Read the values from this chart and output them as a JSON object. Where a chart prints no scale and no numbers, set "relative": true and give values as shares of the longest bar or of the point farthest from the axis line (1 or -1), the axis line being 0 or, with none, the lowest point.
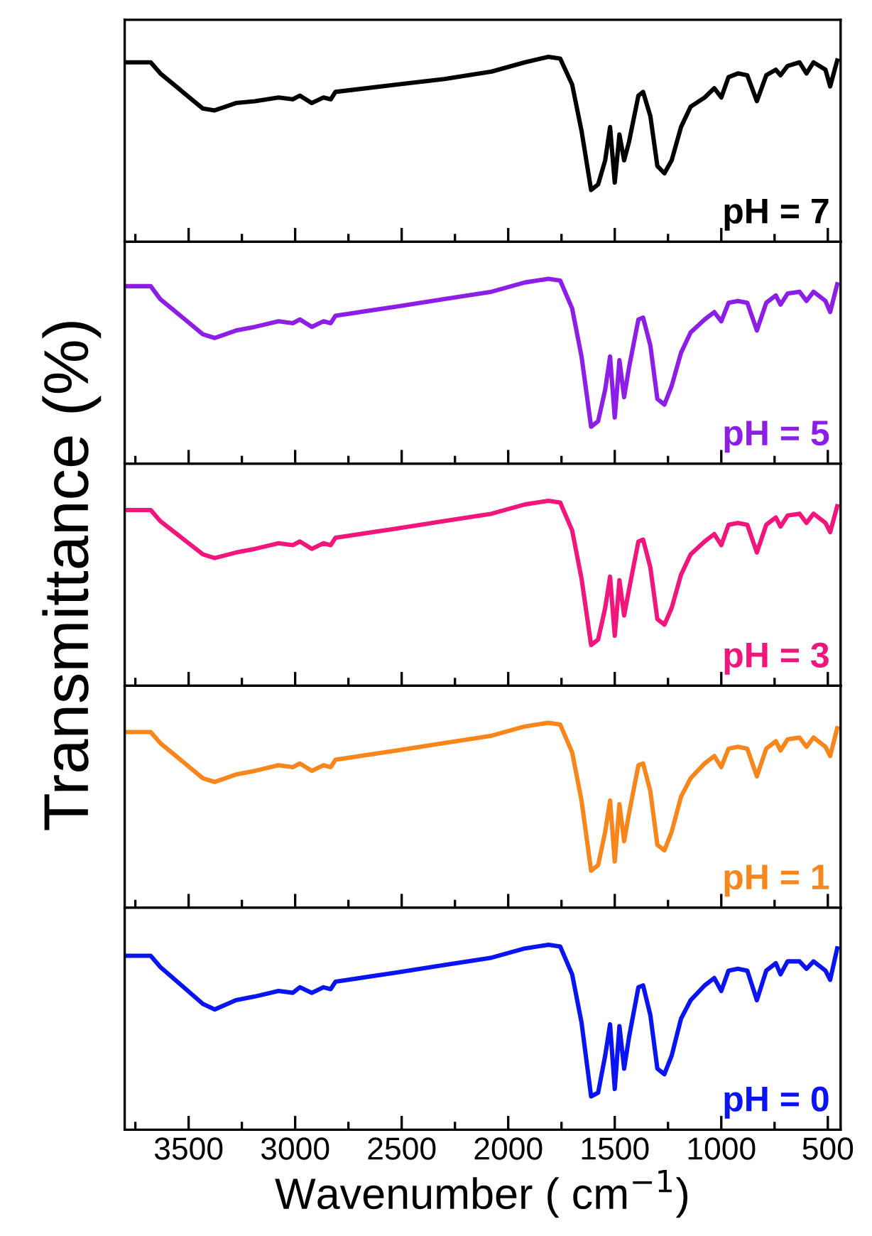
{
  "chart_data": [
    {
      "type": "line",
      "relative": true,
      "tick_labels": false,
      "xlim": [
        3800,
        440
      ],
      "xticks": [
        3500,
        3000,
        2500,
        2000,
        1500,
        1000,
        500,
        {
          "value": 3750,
          "label": null
        },
        {
          "value": 3250,
          "label": null
        },
        {
          "value": 2750,
          "label": null
        },
        {
          "value": 2250,
          "label": null
        },
        {
          "value": 1750,
          "label": null
        },
        {
          "value": 1250,
          "label": null
        },
        {
          "value": 750,
          "label": null
        }
      ],
      "x": [
        3800,
        3678,
        3633,
        3433,
        3378,
        3278,
        3189,
        3078,
        3011,
        2978,
        2922,
        2867,
        2833,
        2811,
        2522,
        2300,
        2078,
        1922,
        1811,
        1756,
        1700,
        1656,
        1611,
        1578,
        1545,
        1522,
        1500,
        1478,
        1456,
        1433,
        1389,
        1367,
        1333,
        1300,
        1267,
        1233,
        1189,
        1144,
        1078,
        1033,
        1000,
        966,
        922,
        878,
        833,
        789,
        744,
        722,
        689,
        633,
        600,
        567,
        511,
        489,
        456
      ],
      "series": [
        {
          "name": "pH = 7",
          "color": "#000000",
          "values": [
            0.97,
            0.97,
            0.91,
            0.72,
            0.71,
            0.75,
            0.76,
            0.78,
            0.77,
            0.79,
            0.75,
            0.78,
            0.77,
            0.81,
            0.85,
            0.88,
            0.92,
            0.97,
            1.0,
            0.99,
            0.85,
            0.6,
            0.28,
            0.31,
            0.44,
            0.62,
            0.32,
            0.58,
            0.44,
            0.54,
            0.79,
            0.81,
            0.68,
            0.41,
            0.37,
            0.44,
            0.62,
            0.73,
            0.78,
            0.83,
            0.78,
            0.89,
            0.91,
            0.9,
            0.76,
            0.9,
            0.93,
            0.9,
            0.95,
            0.97,
            0.91,
            0.97,
            0.93,
            0.84,
            0.98
          ]
        }
      ]
    },
    {
      "type": "line",
      "relative": true,
      "tick_labels": false,
      "xlim": [
        3800,
        440
      ],
      "xticks": [
        3500,
        3000,
        2500,
        2000,
        1500,
        1000,
        500,
        {
          "value": 3750,
          "label": null
        },
        {
          "value": 3250,
          "label": null
        },
        {
          "value": 2750,
          "label": null
        },
        {
          "value": 2250,
          "label": null
        },
        {
          "value": 1750,
          "label": null
        },
        {
          "value": 1250,
          "label": null
        },
        {
          "value": 750,
          "label": null
        }
      ],
      "x": [
        3800,
        3678,
        3633,
        3433,
        3378,
        3278,
        3189,
        3078,
        3011,
        2978,
        2922,
        2867,
        2833,
        2811,
        2522,
        2300,
        2078,
        1922,
        1811,
        1756,
        1700,
        1656,
        1611,
        1578,
        1545,
        1522,
        1500,
        1478,
        1456,
        1433,
        1389,
        1367,
        1333,
        1300,
        1267,
        1233,
        1189,
        1144,
        1078,
        1033,
        1000,
        966,
        922,
        878,
        833,
        789,
        744,
        722,
        689,
        633,
        600,
        567,
        511,
        489,
        456
      ],
      "series": [
        {
          "name": "pH = 5",
          "color": "#8c1ee6",
          "values": [
            0.96,
            0.96,
            0.89,
            0.7,
            0.68,
            0.72,
            0.74,
            0.77,
            0.76,
            0.78,
            0.74,
            0.77,
            0.76,
            0.8,
            0.85,
            0.89,
            0.93,
            0.98,
            1.0,
            0.99,
            0.84,
            0.58,
            0.2,
            0.23,
            0.4,
            0.58,
            0.25,
            0.56,
            0.36,
            0.52,
            0.78,
            0.79,
            0.64,
            0.35,
            0.32,
            0.42,
            0.6,
            0.71,
            0.78,
            0.82,
            0.77,
            0.87,
            0.88,
            0.87,
            0.72,
            0.87,
            0.91,
            0.86,
            0.92,
            0.93,
            0.88,
            0.93,
            0.88,
            0.82,
            0.97
          ]
        }
      ]
    },
    {
      "type": "line",
      "relative": true,
      "tick_labels": false,
      "ylabel": "Transmittance (%)",
      "xlim": [
        3800,
        440
      ],
      "xticks": [
        3500,
        3000,
        2500,
        2000,
        1500,
        1000,
        500,
        {
          "value": 3750,
          "label": null
        },
        {
          "value": 3250,
          "label": null
        },
        {
          "value": 2750,
          "label": null
        },
        {
          "value": 2250,
          "label": null
        },
        {
          "value": 1750,
          "label": null
        },
        {
          "value": 1250,
          "label": null
        },
        {
          "value": 750,
          "label": null
        }
      ],
      "x": [
        3800,
        3678,
        3633,
        3433,
        3378,
        3278,
        3189,
        3078,
        3011,
        2978,
        2922,
        2867,
        2833,
        2811,
        2522,
        2300,
        2078,
        1922,
        1811,
        1756,
        1700,
        1656,
        1611,
        1578,
        1545,
        1522,
        1500,
        1478,
        1456,
        1433,
        1389,
        1367,
        1333,
        1300,
        1267,
        1233,
        1189,
        1144,
        1078,
        1033,
        1000,
        966,
        922,
        878,
        833,
        789,
        744,
        722,
        689,
        633,
        600,
        567,
        511,
        489,
        456
      ],
      "series": [
        {
          "name": "pH = 3",
          "color": "#f0167c",
          "values": [
            0.95,
            0.95,
            0.89,
            0.71,
            0.69,
            0.72,
            0.74,
            0.77,
            0.76,
            0.78,
            0.74,
            0.77,
            0.76,
            0.8,
            0.85,
            0.89,
            0.93,
            0.98,
            1.0,
            0.99,
            0.84,
            0.58,
            0.22,
            0.25,
            0.42,
            0.59,
            0.27,
            0.57,
            0.38,
            0.52,
            0.78,
            0.79,
            0.64,
            0.36,
            0.33,
            0.42,
            0.6,
            0.71,
            0.78,
            0.82,
            0.76,
            0.87,
            0.88,
            0.87,
            0.72,
            0.87,
            0.91,
            0.86,
            0.92,
            0.93,
            0.88,
            0.93,
            0.88,
            0.83,
            0.97
          ]
        }
      ]
    },
    {
      "type": "line",
      "relative": true,
      "tick_labels": false,
      "xlim": [
        3800,
        440
      ],
      "xticks": [
        3500,
        3000,
        2500,
        2000,
        1500,
        1000,
        500,
        {
          "value": 3750,
          "label": null
        },
        {
          "value": 3250,
          "label": null
        },
        {
          "value": 2750,
          "label": null
        },
        {
          "value": 2250,
          "label": null
        },
        {
          "value": 1750,
          "label": null
        },
        {
          "value": 1250,
          "label": null
        },
        {
          "value": 750,
          "label": null
        }
      ],
      "x": [
        3800,
        3678,
        3633,
        3433,
        3378,
        3278,
        3189,
        3078,
        3011,
        2978,
        2922,
        2867,
        2833,
        2811,
        2522,
        2300,
        2078,
        1922,
        1811,
        1756,
        1700,
        1656,
        1611,
        1578,
        1545,
        1522,
        1500,
        1478,
        1456,
        1433,
        1389,
        1367,
        1333,
        1300,
        1267,
        1233,
        1189,
        1144,
        1078,
        1033,
        1000,
        966,
        922,
        878,
        833,
        789,
        744,
        722,
        689,
        633,
        600,
        567,
        511,
        489,
        456
      ],
      "series": [
        {
          "name": "pH = 1",
          "color": "#f7861c",
          "values": [
            0.95,
            0.95,
            0.89,
            0.7,
            0.68,
            0.72,
            0.74,
            0.77,
            0.76,
            0.78,
            0.74,
            0.77,
            0.76,
            0.8,
            0.85,
            0.89,
            0.93,
            0.98,
            1.0,
            0.99,
            0.84,
            0.58,
            0.2,
            0.23,
            0.41,
            0.58,
            0.25,
            0.56,
            0.36,
            0.51,
            0.77,
            0.78,
            0.63,
            0.34,
            0.31,
            0.41,
            0.6,
            0.7,
            0.78,
            0.82,
            0.76,
            0.86,
            0.87,
            0.86,
            0.71,
            0.86,
            0.9,
            0.85,
            0.91,
            0.92,
            0.87,
            0.92,
            0.87,
            0.82,
            0.97
          ]
        }
      ]
    },
    {
      "type": "line",
      "relative": true,
      "tick_labels": "x",
      "xlabel": "Wavenumber ( cm$^{−1}$)",
      "xlim": [
        3800,
        440
      ],
      "xticks": [
        3500,
        3000,
        2500,
        2000,
        1500,
        1000,
        500,
        {
          "value": 3750,
          "label": null
        },
        {
          "value": 3250,
          "label": null
        },
        {
          "value": 2750,
          "label": null
        },
        {
          "value": 2250,
          "label": null
        },
        {
          "value": 1750,
          "label": null
        },
        {
          "value": 1250,
          "label": null
        },
        {
          "value": 750,
          "label": null
        }
      ],
      "x": [
        3800,
        3678,
        3633,
        3433,
        3378,
        3278,
        3189,
        3078,
        3011,
        2978,
        2922,
        2867,
        2833,
        2811,
        2522,
        2300,
        2078,
        1922,
        1811,
        1756,
        1700,
        1656,
        1611,
        1578,
        1545,
        1522,
        1500,
        1478,
        1456,
        1433,
        1389,
        1367,
        1333,
        1300,
        1267,
        1233,
        1189,
        1144,
        1078,
        1033,
        1000,
        966,
        922,
        878,
        833,
        789,
        744,
        722,
        689,
        633,
        600,
        567,
        511,
        489,
        456
      ],
      "series": [
        {
          "name": "pH = 0",
          "color": "#0a14f0",
          "values": [
            0.94,
            0.94,
            0.88,
            0.68,
            0.65,
            0.7,
            0.72,
            0.75,
            0.74,
            0.77,
            0.74,
            0.77,
            0.76,
            0.8,
            0.85,
            0.89,
            0.93,
            0.98,
            1.0,
            0.99,
            0.84,
            0.58,
            0.18,
            0.2,
            0.4,
            0.57,
            0.22,
            0.56,
            0.33,
            0.5,
            0.77,
            0.78,
            0.62,
            0.33,
            0.3,
            0.4,
            0.6,
            0.7,
            0.78,
            0.82,
            0.75,
            0.86,
            0.87,
            0.86,
            0.7,
            0.86,
            0.9,
            0.84,
            0.91,
            0.91,
            0.87,
            0.91,
            0.86,
            0.81,
            0.98
          ]
        }
      ]
    }
  ]
}
